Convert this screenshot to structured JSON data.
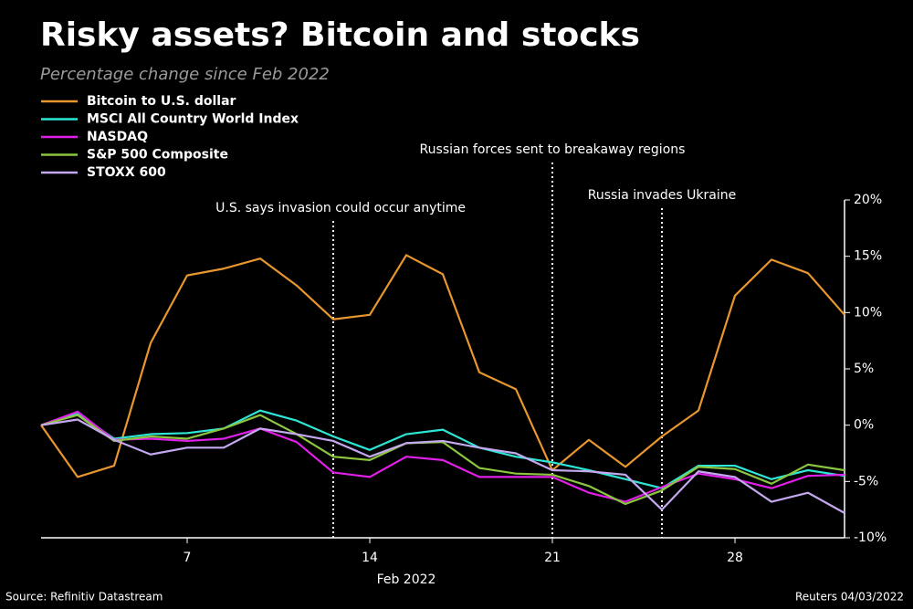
{
  "chart_data": {
    "type": "line",
    "title": "Risky assets? Bitcoin and stocks",
    "subtitle": "Percentage change since Feb 2022",
    "x_label": "Feb 2022",
    "source": "Source: Refinitiv Datastream",
    "credit": "Reuters 04/03/2022",
    "categories": [
      null,
      null,
      null,
      null,
      "7",
      null,
      null,
      null,
      null,
      "14",
      null,
      null,
      null,
      null,
      "21",
      null,
      null,
      null,
      null,
      "28",
      null,
      null,
      null
    ],
    "series": [
      {
        "name": "Bitcoin to U.S. dollar",
        "color": "#e8962e",
        "values": [
          0,
          -4.6,
          -3.6,
          7.3,
          13.3,
          13.9,
          14.8,
          12.4,
          9.4,
          9.8,
          15.1,
          13.4,
          4.7,
          3.2,
          -4.0,
          -1.3,
          -3.7,
          -1.0,
          1.3,
          11.5,
          14.7,
          13.5,
          9.8
        ]
      },
      {
        "name": "MSCI All Country World Index",
        "color": "#2ee6d6",
        "values": [
          0,
          1.0,
          -1.2,
          -0.8,
          -0.7,
          -0.3,
          1.3,
          0.4,
          -1.0,
          -2.2,
          -0.8,
          -0.4,
          -2.0,
          -2.8,
          -3.3,
          -4.0,
          -4.8,
          -5.6,
          -3.6,
          -3.6,
          -4.8,
          -4.0,
          -4.5
        ]
      },
      {
        "name": "NASDAQ",
        "color": "#e020e8",
        "values": [
          0,
          1.2,
          -1.3,
          -1.2,
          -1.4,
          -1.2,
          -0.3,
          -1.5,
          -4.2,
          -4.6,
          -2.8,
          -3.1,
          -4.6,
          -4.6,
          -4.6,
          -6.0,
          -6.8,
          -5.5,
          -4.3,
          -4.8,
          -5.6,
          -4.5,
          -4.4
        ]
      },
      {
        "name": "S&P 500 Composite",
        "color": "#8cc63f",
        "values": [
          0,
          0.9,
          -1.4,
          -1.0,
          -1.2,
          -0.3,
          0.9,
          -0.8,
          -2.8,
          -3.1,
          -1.6,
          -1.5,
          -3.8,
          -4.3,
          -4.4,
          -5.4,
          -7.0,
          -5.8,
          -3.7,
          -3.9,
          -5.2,
          -3.5,
          -4.0
        ]
      },
      {
        "name": "STOXX 600",
        "color": "#c4a8f0",
        "values": [
          0,
          0.5,
          -1.3,
          -2.6,
          -2.0,
          -2.0,
          -0.3,
          -0.8,
          -1.4,
          -2.8,
          -1.6,
          -1.4,
          -2.0,
          -2.5,
          -4.0,
          -4.1,
          -4.4,
          -7.5,
          -4.1,
          -4.6,
          -6.8,
          -6.0,
          -7.8
        ]
      }
    ],
    "annotations": [
      {
        "text": "U.S. says invasion could occur anytime",
        "x": 8
      },
      {
        "text": "Russian forces sent to breakaway regions",
        "x": 14
      },
      {
        "text": "Russia invades Ukraine",
        "x": 17
      }
    ],
    "ylim": [
      -10,
      20
    ],
    "yticks": [
      {
        "value": 20,
        "label": "20%"
      },
      {
        "value": 15,
        "label": "15%"
      },
      {
        "value": 10,
        "label": "10%"
      },
      {
        "value": 5,
        "label": "5%"
      },
      {
        "value": 0,
        "label": "0%"
      },
      {
        "value": -5,
        "label": "-5%"
      },
      {
        "value": -10,
        "label": "-10%"
      }
    ],
    "grid": false
  }
}
